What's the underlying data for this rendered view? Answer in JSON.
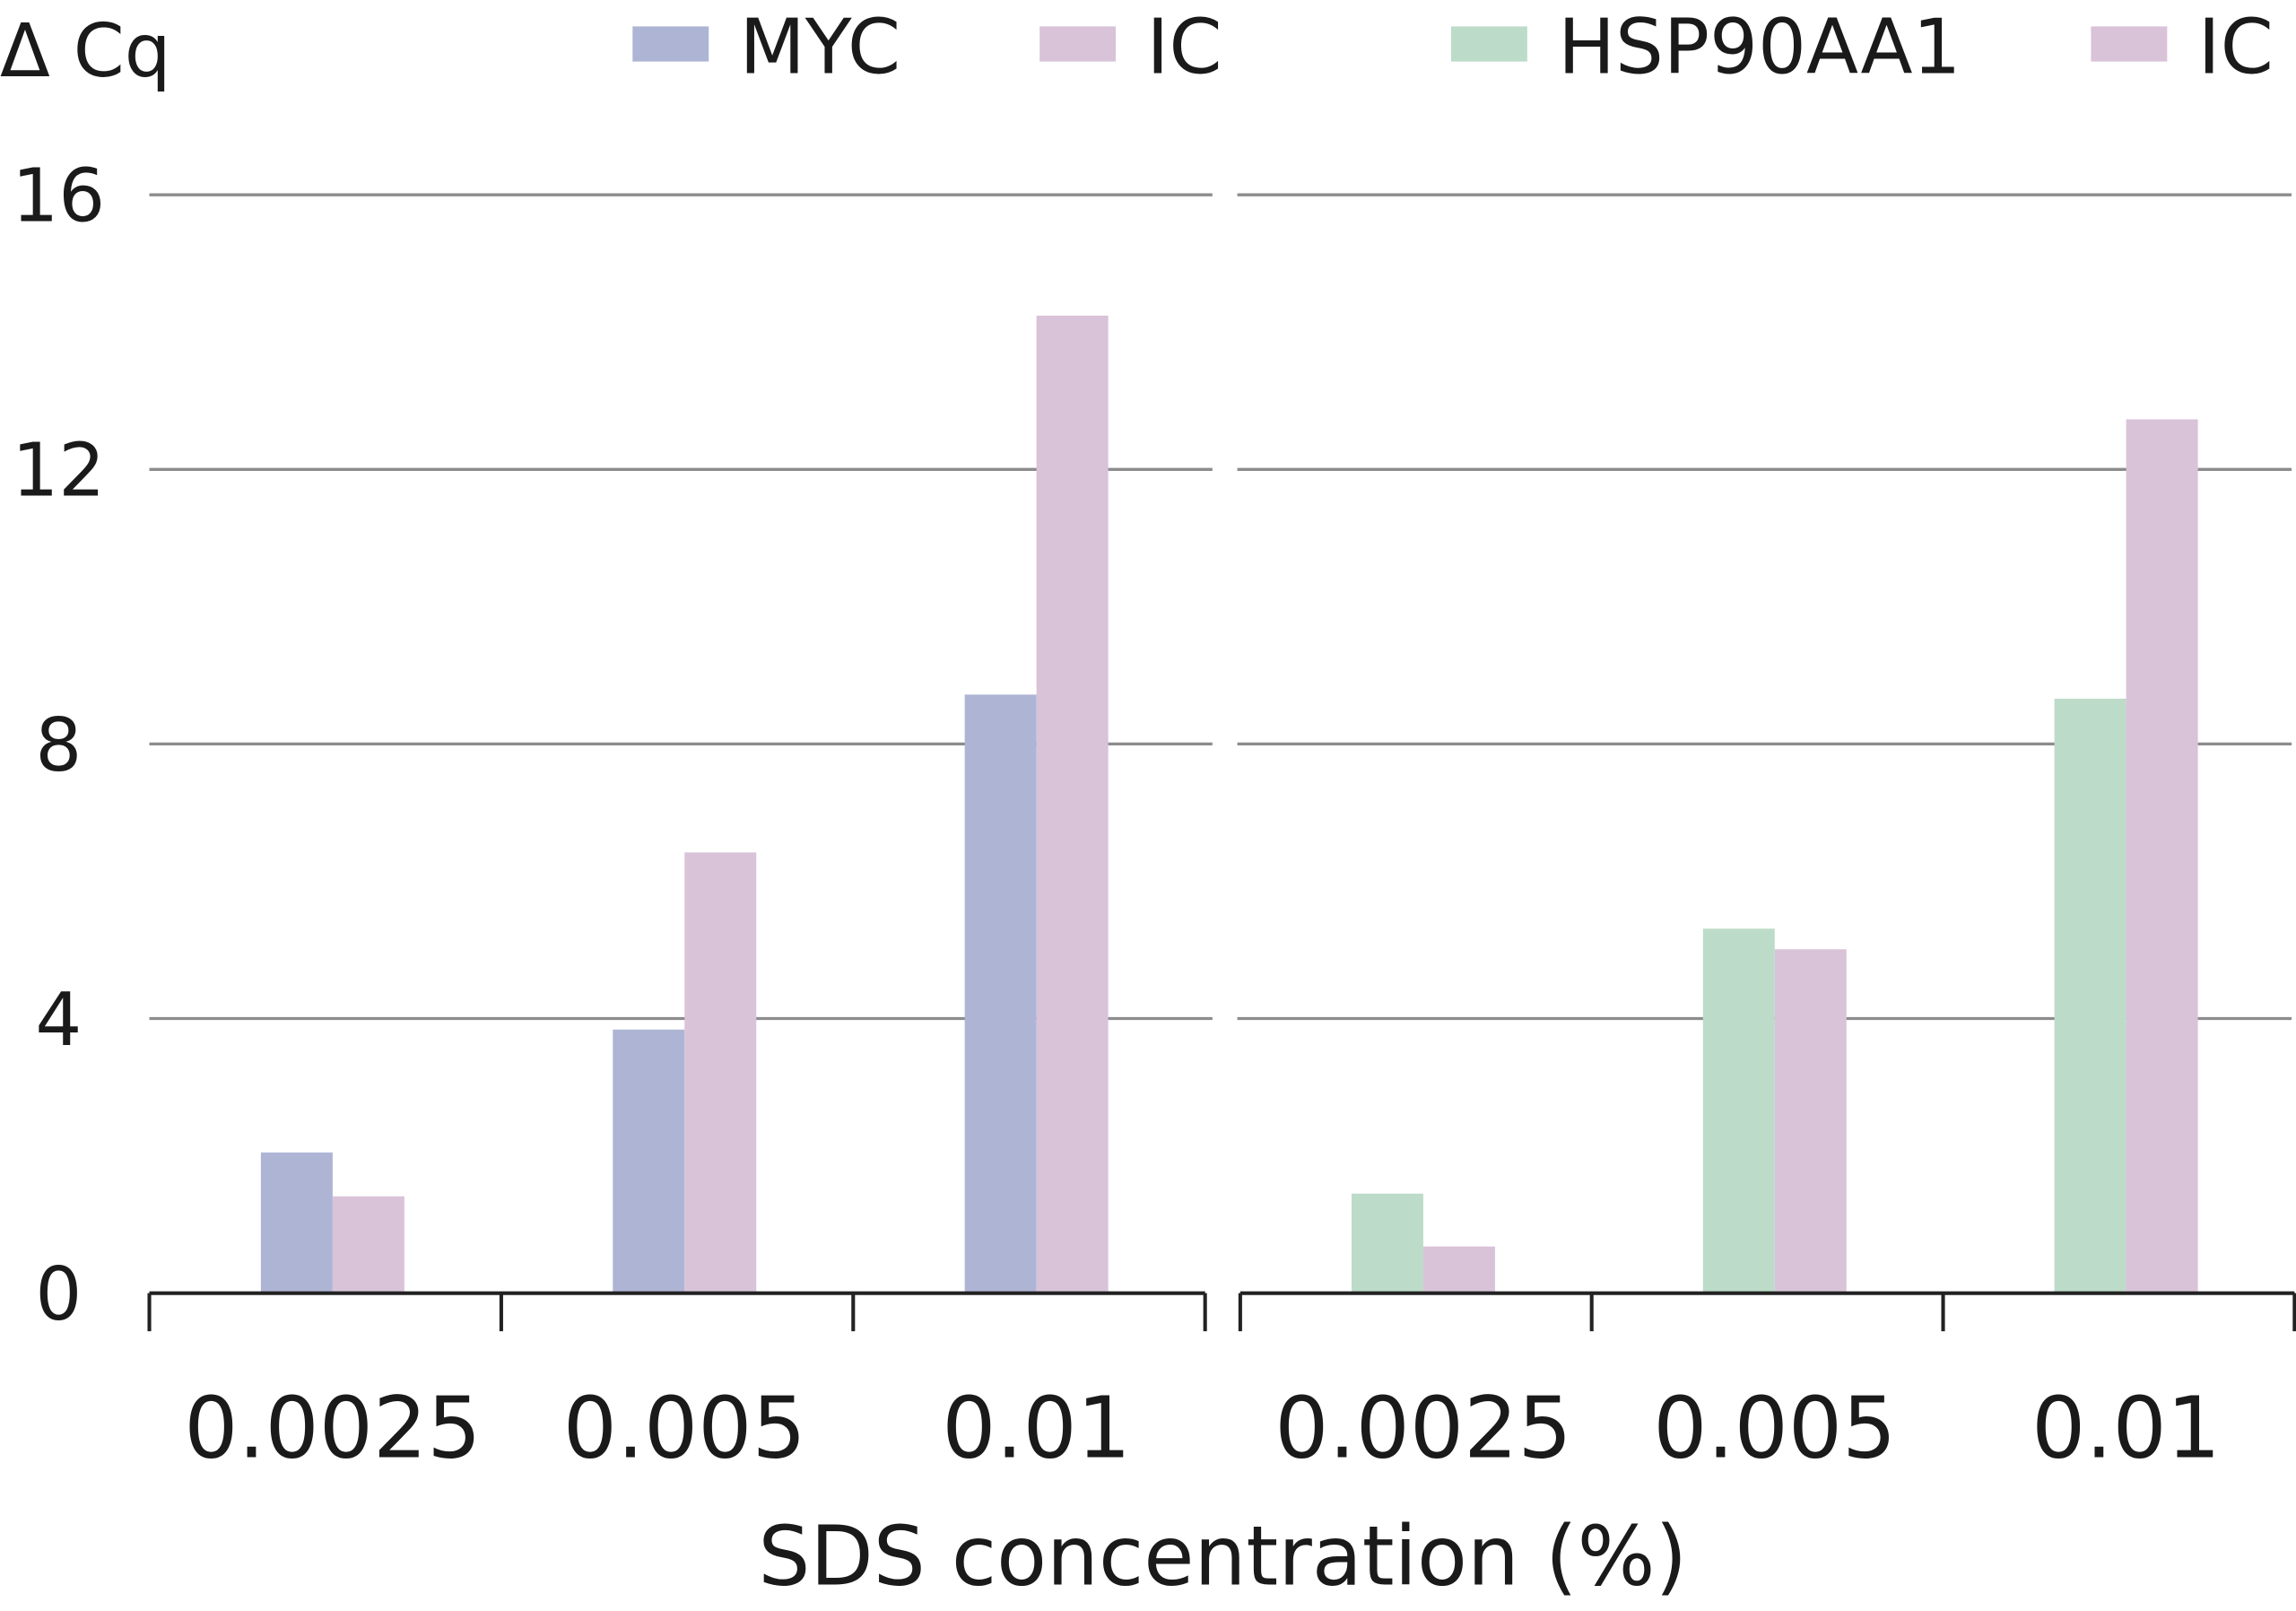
{
  "chart_data": {
    "type": "bar",
    "ylabel": "Δ Cq",
    "xlabel": "SDS concentration (%)",
    "ylim": [
      0,
      16
    ],
    "yticks": [
      "0",
      "4",
      "8",
      "12",
      "16"
    ],
    "ytick_values": [
      0,
      4,
      8,
      12,
      16
    ],
    "grid": true,
    "legend_placement": "top",
    "colors": {
      "MYC": "#aeb5d4",
      "IC": "#d9c3d9",
      "HSP90AA1": "#bddbc9"
    },
    "panels": [
      {
        "categories": [
          "0.0025",
          "0.005",
          "0.01"
        ],
        "series": [
          {
            "name": "MYC",
            "color": "#aeb5d4",
            "values": [
              2.05,
              3.84,
              8.72
            ]
          },
          {
            "name": "IC",
            "color": "#d9c3d9",
            "values": [
              1.41,
              6.42,
              14.24
            ]
          }
        ]
      },
      {
        "categories": [
          "0.0025",
          "0.005",
          "0.01"
        ],
        "series": [
          {
            "name": "HSP90AA1",
            "color": "#bddbc9",
            "values": [
              1.45,
              5.31,
              8.66
            ]
          },
          {
            "name": "IC",
            "color": "#d9c3d9",
            "values": [
              0.68,
              5.01,
              12.73
            ]
          }
        ]
      }
    ]
  }
}
